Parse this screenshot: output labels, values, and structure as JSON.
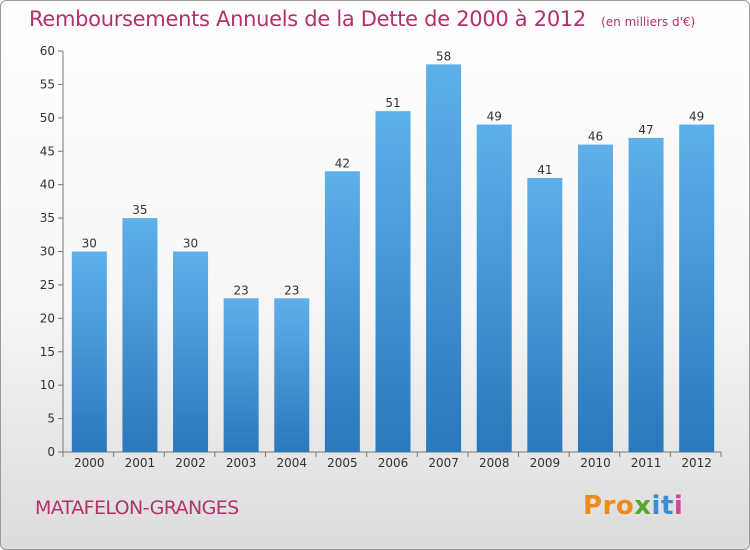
{
  "chart_data": {
    "type": "bar",
    "title": "Remboursements Annuels de la Dette de 2000 à 2012",
    "subtitle": "(en milliers d'€)",
    "categories": [
      "2000",
      "2001",
      "2002",
      "2003",
      "2004",
      "2005",
      "2006",
      "2007",
      "2008",
      "2009",
      "2010",
      "2011",
      "2012"
    ],
    "values": [
      30,
      35,
      30,
      23,
      23,
      42,
      51,
      58,
      49,
      41,
      46,
      47,
      49
    ],
    "ylim": [
      0,
      60
    ],
    "yticks": [
      0,
      5,
      10,
      15,
      20,
      25,
      30,
      35,
      40,
      45,
      50,
      55,
      60
    ],
    "grid": false,
    "bar_color": "#3d8fd3"
  },
  "footer": {
    "commune": "MATAFELON-GRANGES",
    "logo_letters": [
      {
        "ch": "P",
        "color": "#f08a1c"
      },
      {
        "ch": "r",
        "color": "#f08a1c"
      },
      {
        "ch": "o",
        "color": "#f08a1c"
      },
      {
        "ch": "x",
        "color": "#5aa72f"
      },
      {
        "ch": "i",
        "color": "#3c8dd4"
      },
      {
        "ch": "t",
        "color": "#3c8dd4"
      },
      {
        "ch": "i",
        "color": "#e0409a"
      }
    ]
  }
}
